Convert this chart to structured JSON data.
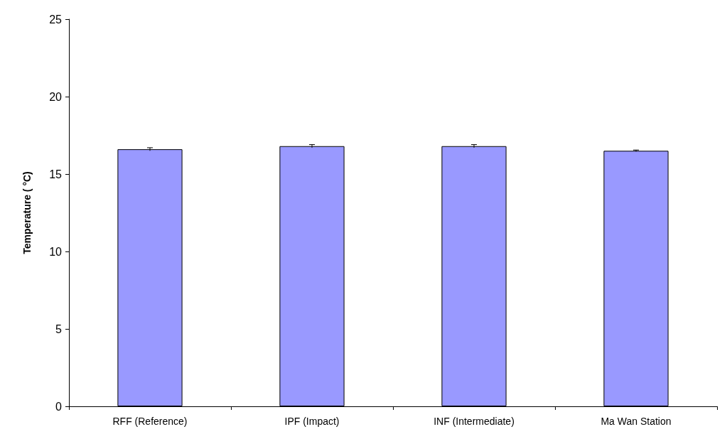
{
  "chart_data": {
    "type": "bar",
    "ylabel": "Temperature ( °C)",
    "categories": [
      "RFF (Reference)",
      "IPF (Impact)",
      "INF (Intermediate)",
      "Ma Wan Station"
    ],
    "values": [
      16.6,
      16.8,
      16.8,
      16.5
    ],
    "errors": [
      0.1,
      0.1,
      0.1,
      0.05
    ],
    "color": "#9999ff",
    "ylim": [
      0,
      25
    ],
    "yticks": [
      0,
      5,
      10,
      15,
      20,
      25
    ],
    "grid": false
  }
}
